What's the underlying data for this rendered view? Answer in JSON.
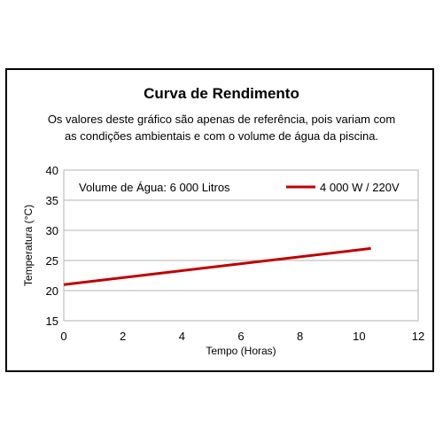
{
  "chart_data": {
    "type": "line",
    "title": "Curva de Rendimento",
    "subtitle_line1": "Os valores deste gráfico são apenas de referência, pois variam com",
    "subtitle_line2": "as condições ambientais e com o volume de água da piscina.",
    "xlabel": "Tempo (Horas)",
    "ylabel": "Temperatura (°C)",
    "xlim": [
      0,
      12
    ],
    "ylim": [
      15,
      40
    ],
    "xticks": [
      0,
      2,
      4,
      6,
      8,
      10,
      12
    ],
    "yticks": [
      15,
      20,
      25,
      30,
      35,
      40
    ],
    "grid": "horizontal",
    "annotation": "Volume de Água: 6 000 Litros",
    "legend_position": "top-right",
    "series": [
      {
        "name": "4 000 W / 220V",
        "color": "#c00000",
        "x": [
          0,
          10.4
        ],
        "y": [
          21,
          27
        ]
      }
    ]
  }
}
